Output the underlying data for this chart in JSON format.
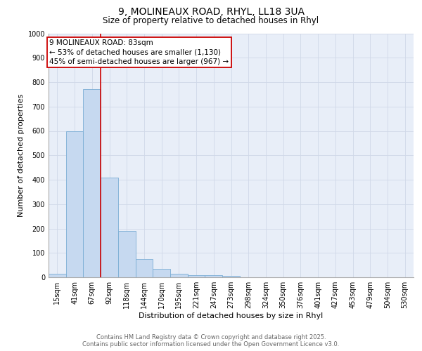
{
  "title_line1": "9, MOLINEAUX ROAD, RHYL, LL18 3UA",
  "title_line2": "Size of property relative to detached houses in Rhyl",
  "xlabel": "Distribution of detached houses by size in Rhyl",
  "ylabel": "Number of detached properties",
  "categories": [
    "15sqm",
    "41sqm",
    "67sqm",
    "92sqm",
    "118sqm",
    "144sqm",
    "170sqm",
    "195sqm",
    "221sqm",
    "247sqm",
    "273sqm",
    "298sqm",
    "324sqm",
    "350sqm",
    "376sqm",
    "401sqm",
    "427sqm",
    "453sqm",
    "479sqm",
    "504sqm",
    "530sqm"
  ],
  "values": [
    13,
    600,
    770,
    410,
    190,
    75,
    35,
    15,
    10,
    10,
    6,
    0,
    0,
    0,
    0,
    0,
    0,
    0,
    0,
    0,
    0
  ],
  "bar_color": "#c6d9f0",
  "bar_edge_color": "#7aadd4",
  "grid_color": "#d0d8e8",
  "background_color": "#e8eef8",
  "red_line_color": "#cc0000",
  "red_line_x": 2.5,
  "annotation_text_line1": "9 MOLINEAUX ROAD: 83sqm",
  "annotation_text_line2": "← 53% of detached houses are smaller (1,130)",
  "annotation_text_line3": "45% of semi-detached houses are larger (967) →",
  "footer_line1": "Contains HM Land Registry data © Crown copyright and database right 2025.",
  "footer_line2": "Contains public sector information licensed under the Open Government Licence v3.0.",
  "ylim": [
    0,
    1000
  ],
  "yticks": [
    0,
    100,
    200,
    300,
    400,
    500,
    600,
    700,
    800,
    900,
    1000
  ],
  "title_fontsize": 10,
  "subtitle_fontsize": 8.5,
  "tick_fontsize": 7,
  "ylabel_fontsize": 8,
  "xlabel_fontsize": 8,
  "footer_fontsize": 6,
  "annotation_fontsize": 7.5
}
